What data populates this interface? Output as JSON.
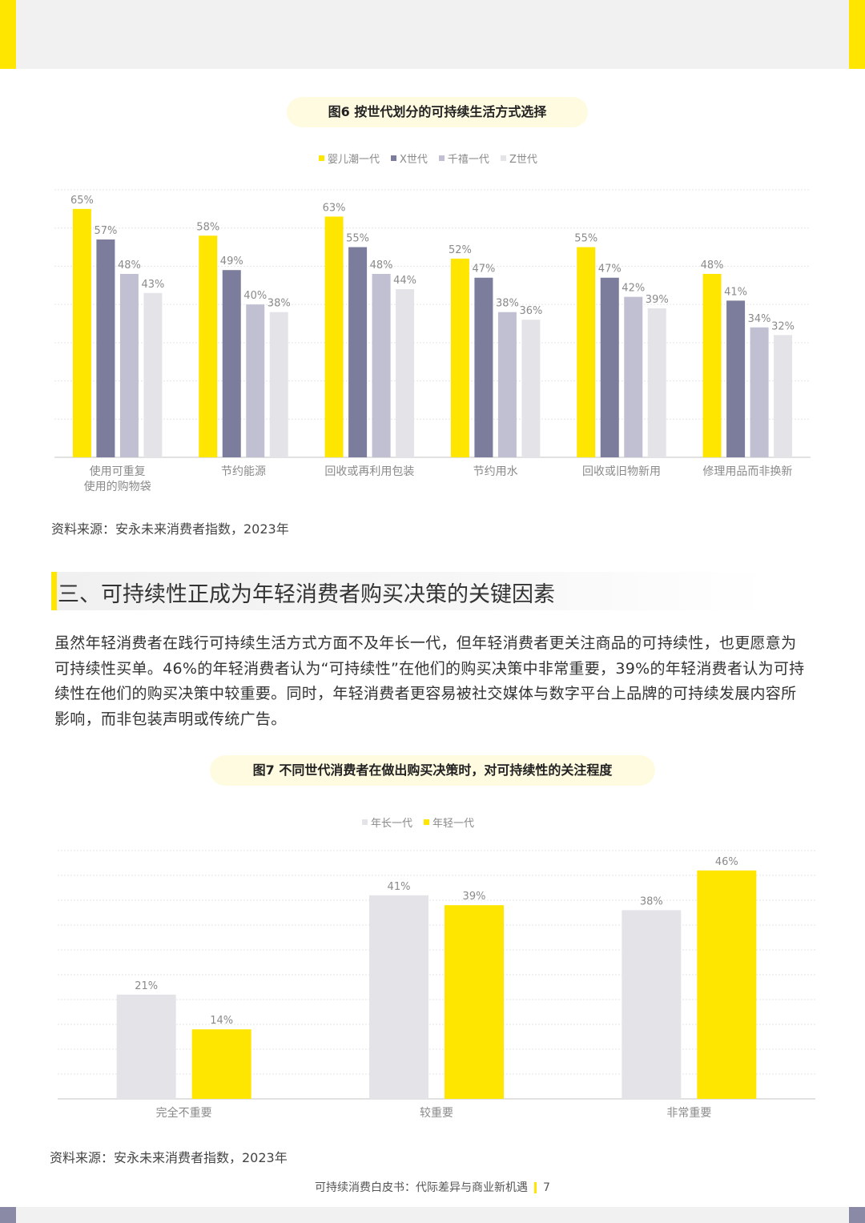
{
  "figure6": {
    "title": "图6 按世代划分的可持续生活方式选择",
    "legend": [
      "婴儿潮一代",
      "X世代",
      "千禧一代",
      "Z世代"
    ],
    "source": "资料来源：安永未来消费者指数，2023年"
  },
  "section": {
    "heading": "三、可持续性正成为年轻消费者购买决策的关键因素",
    "paragraph": "虽然年轻消费者在践行可持续生活方式方面不及年长一代，但年轻消费者更关注商品的可持续性，也更愿意为可持续性买单。46%的年轻消费者认为“可持续性”在他们的购买决策中非常重要，39%的年轻消费者认为可持续性在他们的购买决策中较重要。同时，年轻消费者更容易被社交媒体与数字平台上品牌的可持续发展内容所影响，而非包装声明或传统广告。"
  },
  "figure7": {
    "title": "图7 不同世代消费者在做出购买决策时，对可持续性的关注程度",
    "legend": [
      "年长一代",
      "年轻一代"
    ],
    "source": "资料来源：安永未来消费者指数，2023年"
  },
  "footer": {
    "text": "可持续消费白皮书：代际差异与商业新机遇",
    "page": "7"
  },
  "colors": {
    "accent": "#ffe600",
    "series6": [
      "#ffe600",
      "#7c7c9c",
      "#c0c0d2",
      "#e4e4e8"
    ],
    "series7": [
      "#e4e4e8",
      "#ffe600"
    ]
  },
  "chart_data": [
    {
      "type": "bar",
      "categories": [
        "使用可重复\n使用的购物袋",
        "节约能源",
        "回收或再利用包装",
        "节约用水",
        "回收或旧物新用",
        "修理用品而非换新"
      ],
      "series": [
        {
          "name": "婴儿潮一代",
          "values": [
            65,
            58,
            63,
            52,
            55,
            48
          ]
        },
        {
          "name": "X世代",
          "values": [
            57,
            49,
            55,
            47,
            47,
            41
          ]
        },
        {
          "name": "千禧一代",
          "values": [
            48,
            40,
            48,
            38,
            42,
            34
          ]
        },
        {
          "name": "Z世代",
          "values": [
            43,
            38,
            44,
            36,
            39,
            32
          ]
        }
      ],
      "value_suffix": "%",
      "ylim": [
        0,
        70
      ],
      "grid": true,
      "legend": "top"
    },
    {
      "type": "bar",
      "categories": [
        "完全不重要",
        "较重要",
        "非常重要"
      ],
      "series": [
        {
          "name": "年长一代",
          "values": [
            21,
            41,
            38
          ]
        },
        {
          "name": "年轻一代",
          "values": [
            14,
            39,
            46
          ]
        }
      ],
      "value_suffix": "%",
      "ylim": [
        0,
        50
      ],
      "grid": true,
      "legend": "top"
    }
  ]
}
